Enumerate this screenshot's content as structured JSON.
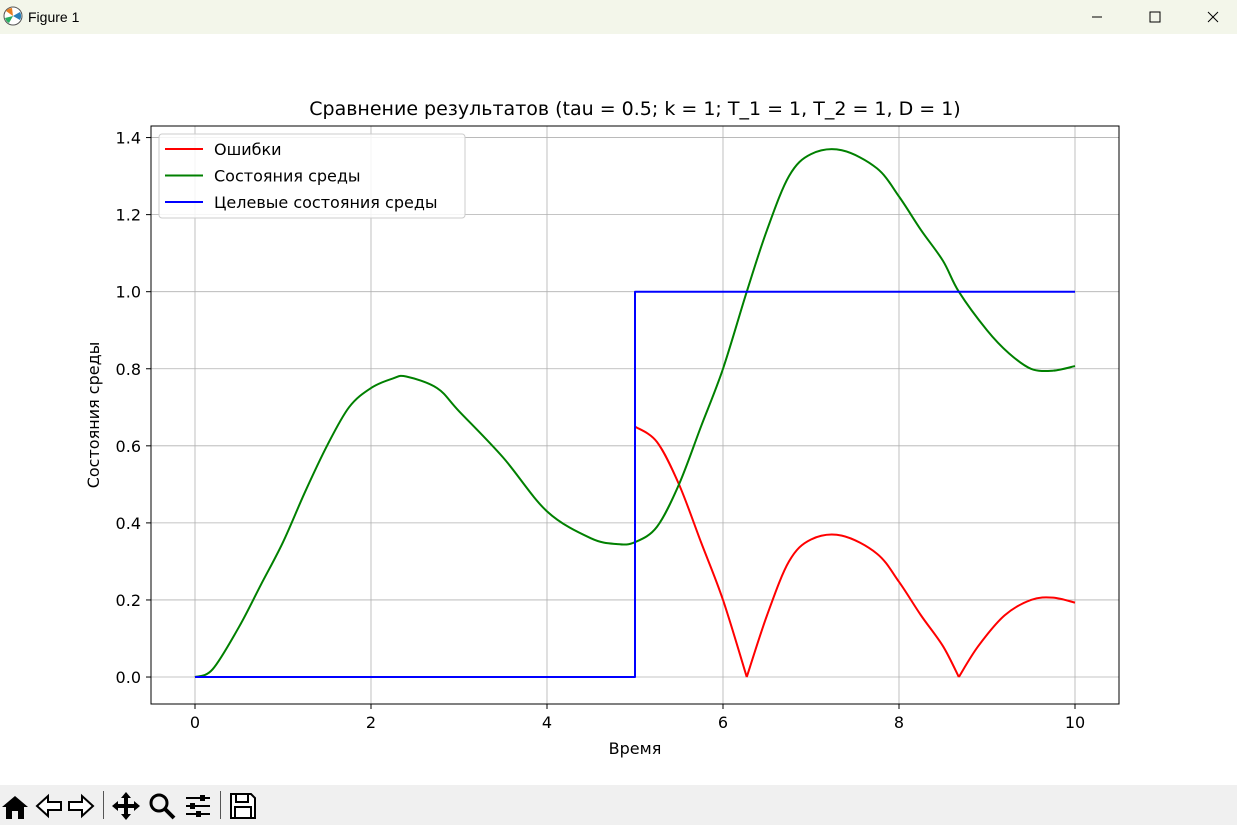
{
  "window": {
    "title": "Figure 1",
    "icon": "matplotlib-icon",
    "controls": [
      "minimize-icon",
      "maximize-icon",
      "close-icon"
    ]
  },
  "toolbar": {
    "tools": [
      "home-icon",
      "back-arrow-icon",
      "forward-arrow-icon",
      "pan-move-icon",
      "zoom-magnifier-icon",
      "configure-subplots-icon",
      "save-floppy-icon"
    ]
  },
  "chart_data": {
    "type": "line",
    "title": "Сравнение результатов (tau = 0.5; k = 1; T_1 = 1, T_2 = 1, D = 1)",
    "xlabel": "Время",
    "ylabel": "Состояния среды",
    "xlim": [
      -0.5,
      10.5
    ],
    "ylim": [
      -0.07,
      1.43
    ],
    "xticks": [
      0,
      2,
      4,
      6,
      8,
      10
    ],
    "xtick_labels": [
      "0",
      "2",
      "4",
      "6",
      "8",
      "10"
    ],
    "yticks": [
      0.0,
      0.2,
      0.4,
      0.6,
      0.8,
      1.0,
      1.2,
      1.4
    ],
    "ytick_labels": [
      "0.0",
      "0.2",
      "0.4",
      "0.6",
      "0.8",
      "1.0",
      "1.2",
      "1.4"
    ],
    "grid": true,
    "legend_position": "top-left",
    "series": [
      {
        "name": "Ошибки",
        "color": "#ff0000",
        "x": [
          5.0,
          5.25,
          5.5,
          5.75,
          6.0,
          6.27,
          6.5,
          6.75,
          7.0,
          7.35,
          7.75,
          8.0,
          8.25,
          8.5,
          8.68,
          8.9,
          9.2,
          9.5,
          9.75,
          10.0
        ],
        "y": [
          0.65,
          0.61,
          0.5,
          0.35,
          0.2,
          0.0,
          0.16,
          0.3,
          0.357,
          0.367,
          0.32,
          0.247,
          0.16,
          0.08,
          0.0,
          0.08,
          0.16,
          0.2,
          0.206,
          0.193
        ]
      },
      {
        "name": "Состояния среды",
        "color": "#008000",
        "x": [
          0.0,
          0.2,
          0.5,
          0.75,
          1.0,
          1.25,
          1.5,
          1.75,
          2.0,
          2.25,
          2.4,
          2.75,
          3.0,
          3.5,
          4.0,
          4.5,
          4.8,
          5.0,
          5.25,
          5.5,
          5.75,
          6.0,
          6.27,
          6.5,
          6.75,
          7.0,
          7.35,
          7.75,
          8.0,
          8.25,
          8.5,
          8.68,
          9.0,
          9.25,
          9.5,
          9.75,
          10.0
        ],
        "y": [
          0.0,
          0.02,
          0.13,
          0.24,
          0.35,
          0.48,
          0.6,
          0.7,
          0.75,
          0.775,
          0.78,
          0.75,
          0.69,
          0.57,
          0.43,
          0.36,
          0.345,
          0.35,
          0.39,
          0.5,
          0.65,
          0.8,
          1.0,
          1.16,
          1.3,
          1.357,
          1.367,
          1.32,
          1.247,
          1.16,
          1.08,
          1.0,
          0.9,
          0.84,
          0.8,
          0.795,
          0.807
        ]
      },
      {
        "name": "Целевые состояния среды",
        "color": "#0000ff",
        "x": [
          0.0,
          5.0,
          5.0,
          10.0
        ],
        "y": [
          0.0,
          0.0,
          1.0,
          1.0
        ]
      }
    ]
  }
}
